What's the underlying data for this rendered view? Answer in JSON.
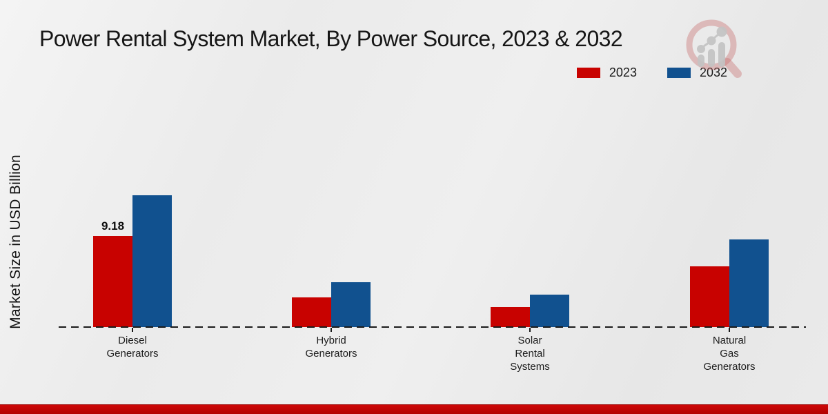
{
  "title": "Power Rental System Market, By Power Source, 2023 & 2032",
  "y_axis_label": "Market Size in USD Billion",
  "legend": [
    {
      "label": "2023",
      "color": "#c80200"
    },
    {
      "label": "2032",
      "color": "#11518f"
    }
  ],
  "logo": {
    "name": "magnifier-growth-chart-logo"
  },
  "footer": {
    "accent_color": "#c00505"
  },
  "chart_data": {
    "type": "bar",
    "title": "Power Rental System Market, By Power Source, 2023 & 2032",
    "xlabel": "",
    "ylabel": "Market Size in USD Billion",
    "categories": [
      "Diesel Generators",
      "Hybrid Generators",
      "Solar Rental Systems",
      "Natural Gas Generators"
    ],
    "category_lines": [
      [
        "Diesel",
        "Generators"
      ],
      [
        "Hybrid",
        "Generators"
      ],
      [
        "Solar",
        "Rental",
        "Systems"
      ],
      [
        "Natural",
        "Gas",
        "Generators"
      ]
    ],
    "series": [
      {
        "name": "2023",
        "color": "#c80200",
        "values": [
          9.18,
          3.0,
          2.0,
          6.1
        ],
        "point_labels": [
          "9.18",
          null,
          null,
          null
        ]
      },
      {
        "name": "2032",
        "color": "#11518f",
        "values": [
          13.3,
          4.5,
          3.3,
          8.8
        ],
        "point_labels": [
          null,
          null,
          null,
          null
        ]
      }
    ],
    "ylim": [
      0,
      14
    ],
    "grid": false,
    "baseline_style": "dashed",
    "legend_position": "top-right"
  }
}
